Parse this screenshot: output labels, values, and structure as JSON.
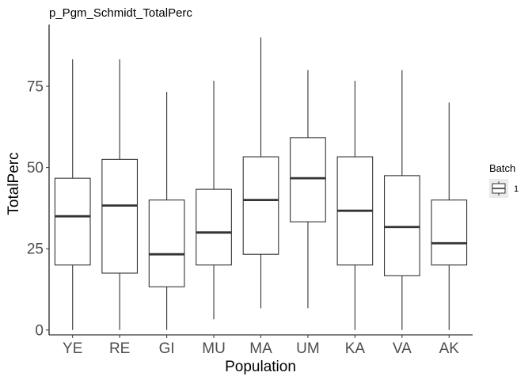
{
  "chart_data": {
    "type": "boxplot",
    "title": "p_Pgm_Schmidt_TotalPerc",
    "xlabel": "Population",
    "ylabel": "TotalPerc",
    "ylim": [
      -1.5,
      94
    ],
    "yticks": [
      0,
      25,
      50,
      75
    ],
    "grid": false,
    "legend": {
      "title": "Batch",
      "placement": "right",
      "entries": [
        "1"
      ]
    },
    "categories": [
      "YE",
      "RE",
      "GI",
      "MU",
      "MA",
      "UM",
      "KA",
      "VA",
      "AK"
    ],
    "boxes": [
      {
        "category": "YE",
        "min": 0,
        "q1": 20,
        "median": 35,
        "q3": 46.7,
        "max": 83.3
      },
      {
        "category": "RE",
        "min": 0,
        "q1": 17.5,
        "median": 38.3,
        "q3": 52.5,
        "max": 83.3
      },
      {
        "category": "GI",
        "min": 0,
        "q1": 13.3,
        "median": 23.3,
        "q3": 40,
        "max": 73.3
      },
      {
        "category": "MU",
        "min": 3.3,
        "q1": 20,
        "median": 30,
        "q3": 43.3,
        "max": 76.7
      },
      {
        "category": "MA",
        "min": 6.7,
        "q1": 23.3,
        "median": 40,
        "q3": 53.3,
        "max": 90
      },
      {
        "category": "UM",
        "min": 6.7,
        "q1": 33.3,
        "median": 46.7,
        "q3": 59.2,
        "max": 80
      },
      {
        "category": "KA",
        "min": 0,
        "q1": 20,
        "median": 36.7,
        "q3": 53.3,
        "max": 76.7
      },
      {
        "category": "VA",
        "min": 0,
        "q1": 16.7,
        "median": 31.7,
        "q3": 47.5,
        "max": 80
      },
      {
        "category": "AK",
        "min": 0,
        "q1": 20,
        "median": 26.7,
        "q3": 40,
        "max": 70
      }
    ]
  }
}
